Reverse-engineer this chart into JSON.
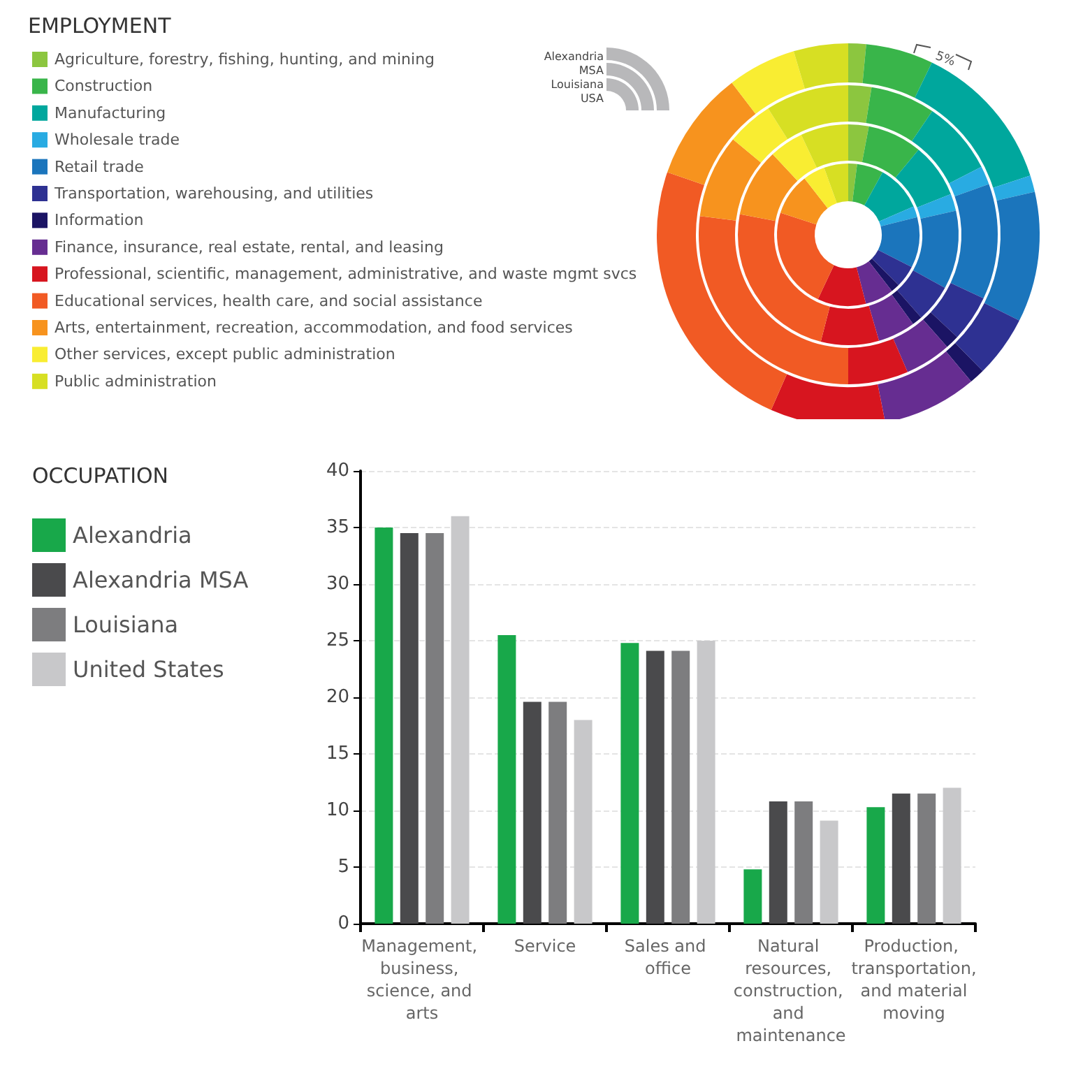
{
  "chart_data": [
    {
      "type": "donut",
      "title": "EMPLOYMENT",
      "categories": [
        "Agriculture, forestry, fishing, hunting, and mining",
        "Construction",
        "Manufacturing",
        "Wholesale trade",
        "Retail trade",
        "Transportation, warehousing, and utilities",
        "Information",
        "Finance, insurance, real estate, rental, and leasing",
        "Professional, scientific, management, administrative, and waste mgmt svcs",
        "Educational services, health care, and social assistance",
        "Arts, entertainment, recreation, accommodation, and food services",
        "Other services, except public administration",
        "Public administration"
      ],
      "colors": [
        "#8cc63f",
        "#39b54a",
        "#00a79d",
        "#29abe2",
        "#1b75bc",
        "#2e3192",
        "#1b1464",
        "#662d91",
        "#d7151f",
        "#f15a24",
        "#f7931e",
        "#f9ed32",
        "#d7df23"
      ],
      "series": [
        {
          "values": [
            1.5,
            5.7,
            12.8,
            1.4,
            11,
            5.2,
            1.3,
            8,
            9.7,
            23.7,
            9.3,
            5.8,
            4.6
          ]
        },
        {
          "values": [
            2.5,
            7,
            8,
            2,
            12.5,
            5,
            1.5,
            5,
            6.5,
            27,
            9,
            5,
            9
          ]
        },
        {
          "values": [
            3,
            8,
            8,
            2.5,
            11.5,
            5.5,
            1.5,
            5.5,
            8.5,
            24,
            10,
            5,
            7
          ]
        },
        {
          "values": [
            2,
            6,
            10.5,
            2.5,
            11.5,
            5,
            2,
            6.5,
            11,
            23,
            9.5,
            5,
            5.5
          ]
        }
      ],
      "annotations": [
        "Alexandria",
        "MSA",
        "Louisiana",
        "USA",
        "5%"
      ],
      "legend": "left"
    },
    {
      "type": "bar",
      "legend_title": "OCCUPATION",
      "categories": [
        "Management, business, science, and arts",
        "Service",
        "Sales and office",
        "Natural resources, construction, and maintenance",
        "Production, transportation, and material moving"
      ],
      "series": [
        {
          "name": "Alexandria",
          "color": "#18a84a",
          "values": [
            35,
            25.5,
            24.8,
            4.8,
            10.3
          ]
        },
        {
          "name": "Alexandria MSA",
          "color": "#4a4a4c",
          "values": [
            34.5,
            19.6,
            24.1,
            10.8,
            11.5
          ]
        },
        {
          "name": "Louisiana",
          "color": "#7d7d7f",
          "values": [
            34.5,
            19.6,
            24.1,
            10.8,
            11.5
          ]
        },
        {
          "name": "United States",
          "color": "#c8c8ca",
          "values": [
            36,
            18,
            25,
            9.1,
            12
          ]
        }
      ],
      "ylim": [
        0,
        40
      ],
      "yticks": [
        0,
        5,
        10,
        15,
        20,
        25,
        30,
        35,
        40
      ],
      "grid": "y",
      "legend": "left"
    }
  ]
}
